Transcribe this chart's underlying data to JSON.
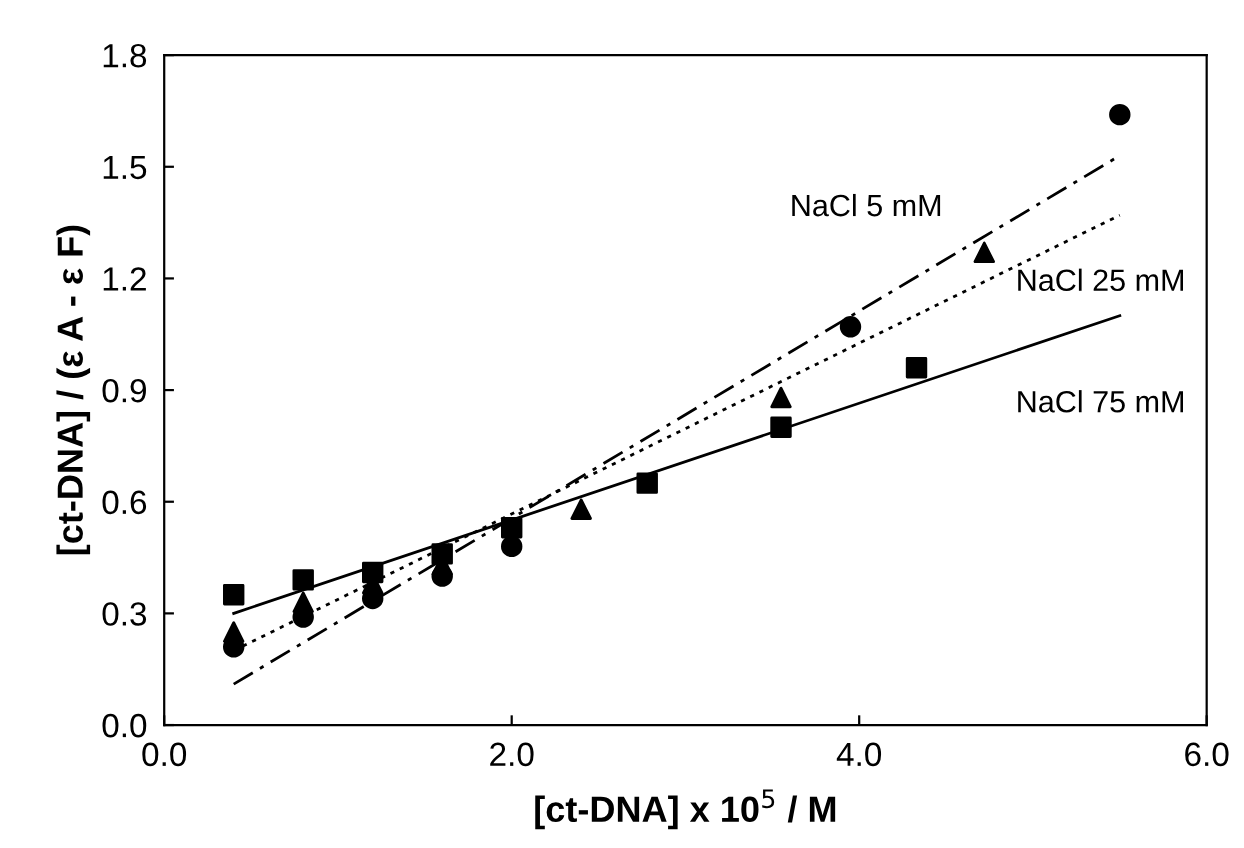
{
  "chart_data": {
    "type": "scatter",
    "xlabel": "[ct-DNA] x 10$^{5}$ / M",
    "ylabel": "[ct-DNA] / (ε A - ε F)",
    "xlim": [
      0,
      6
    ],
    "xticks": [
      {
        "value": 0,
        "label": "0.0"
      },
      {
        "value": 2,
        "label": "2.0"
      },
      {
        "value": 4,
        "label": "4.0"
      },
      {
        "value": 6,
        "label": "6.0"
      }
    ],
    "ylim": [
      0,
      1.8
    ],
    "yticks": [
      {
        "value": 0,
        "label": "0.0"
      },
      {
        "value": 0.3,
        "label": "0.3"
      },
      {
        "value": 0.6,
        "label": "0.6"
      },
      {
        "value": 0.9,
        "label": "0.9"
      },
      {
        "value": 1.2,
        "label": "1.2"
      },
      {
        "value": 1.5,
        "label": "1.5"
      },
      {
        "value": 1.8,
        "label": "1.8"
      }
    ],
    "grid": false,
    "legend": false,
    "series": [
      {
        "marker": "circle",
        "color": "#000000",
        "x": [
          0.4,
          0.8,
          1.2,
          1.6,
          2.0,
          3.95,
          5.5
        ],
        "values": [
          0.21,
          0.29,
          0.34,
          0.4,
          0.48,
          1.07,
          1.64
        ]
      },
      {
        "marker": "triangle",
        "color": "#000000",
        "x": [
          0.4,
          0.8,
          1.2,
          1.6,
          2.0,
          2.4,
          3.55,
          4.72
        ],
        "values": [
          0.25,
          0.33,
          0.38,
          0.43,
          null,
          0.58,
          0.88,
          1.27
        ]
      },
      {
        "marker": "square",
        "color": "#000000",
        "x": [
          0.4,
          0.8,
          1.2,
          1.6,
          2.0,
          2.78,
          3.55,
          4.33
        ],
        "values": [
          0.35,
          0.39,
          0.41,
          0.46,
          0.53,
          0.65,
          0.8,
          0.96
        ]
      },
      {
        "type": "line",
        "name": "NaCl 5 mM",
        "line_style": "dashed",
        "color": "#000000",
        "x": [
          0.4,
          5.5
        ],
        "values": [
          0.11,
          1.53
        ]
      },
      {
        "type": "line",
        "name": "NaCl 25 mM",
        "line_style": "dotted",
        "color": "#000000",
        "x": [
          0.4,
          5.5
        ],
        "values": [
          0.2,
          1.37
        ]
      },
      {
        "type": "line",
        "name": "NaCl 75 mM",
        "line_style": "solid",
        "color": "#000000",
        "x": [
          0.4,
          5.5
        ],
        "values": [
          0.3,
          1.1
        ]
      }
    ]
  }
}
